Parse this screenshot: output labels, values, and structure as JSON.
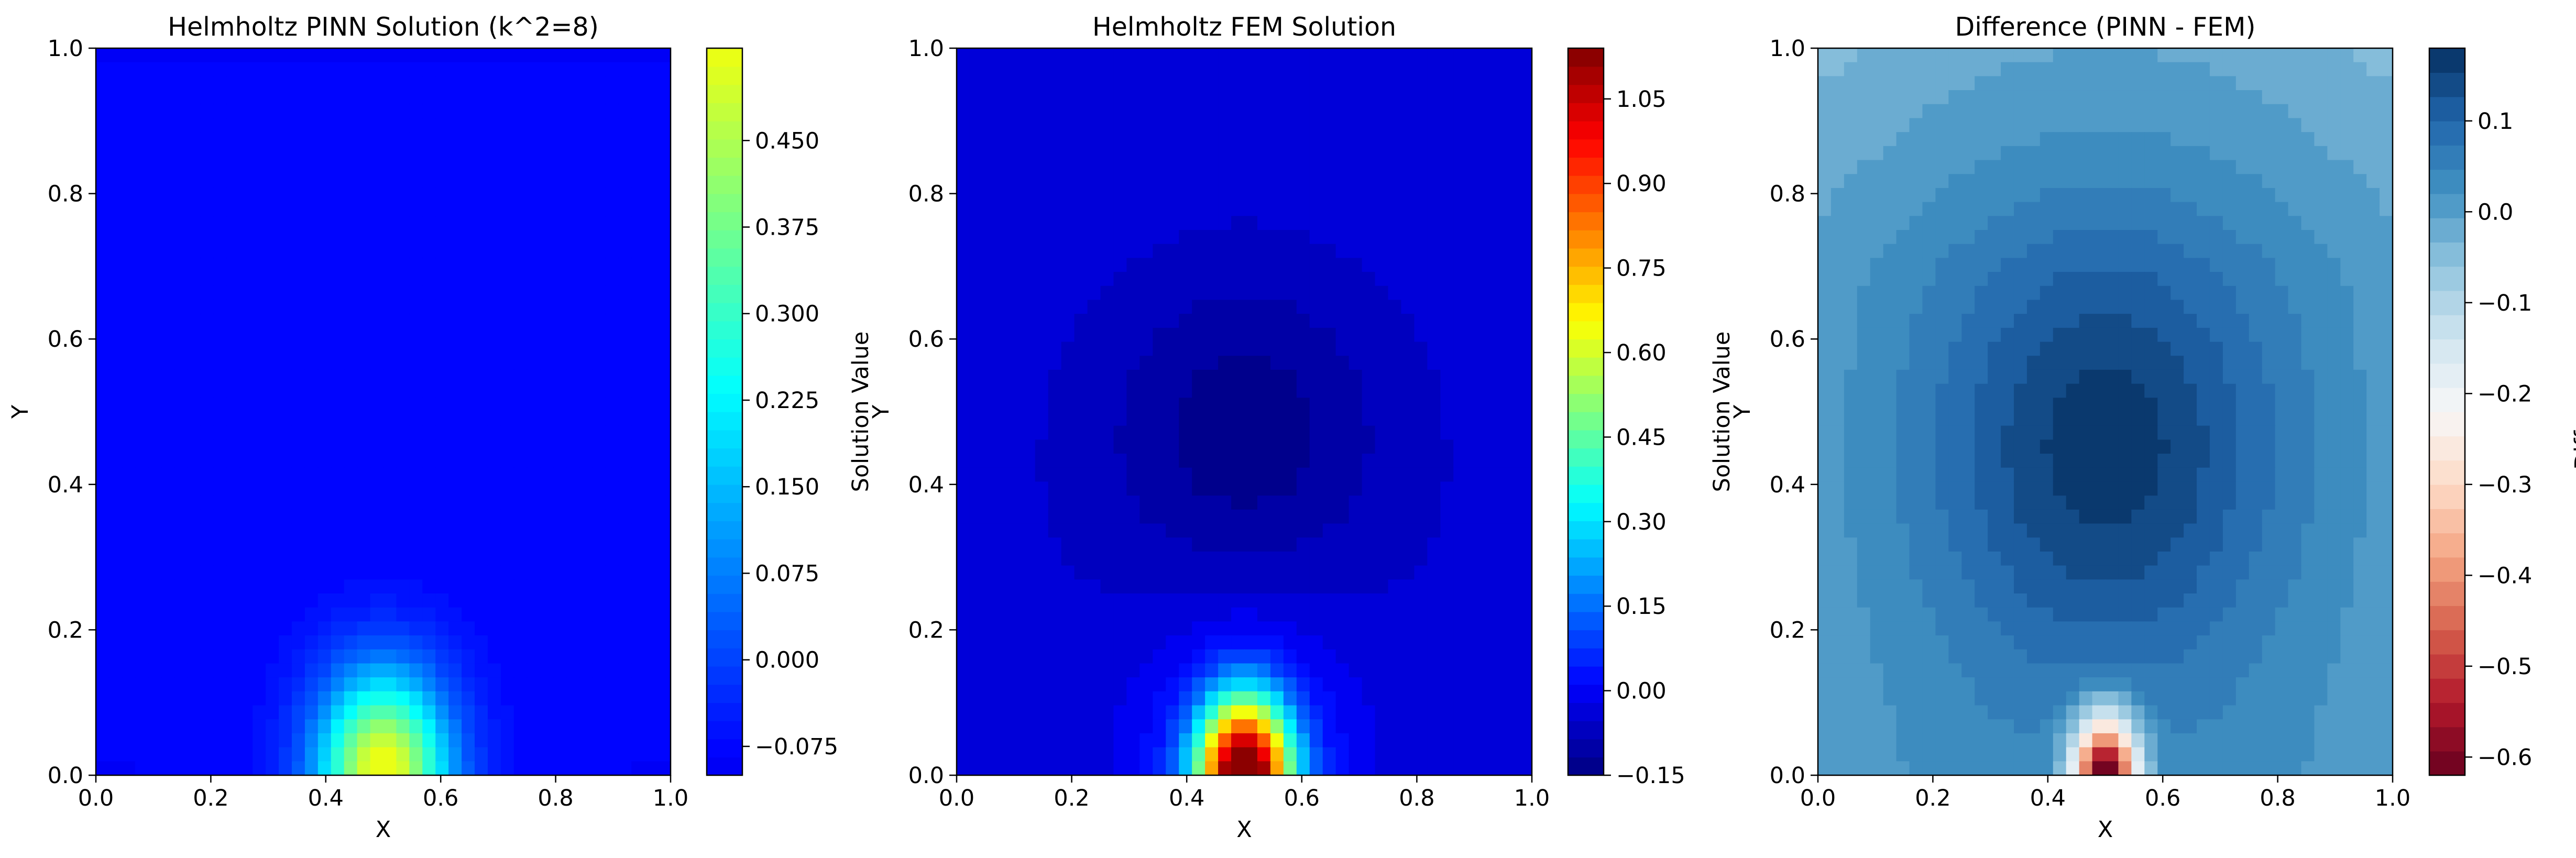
{
  "chart_data": [
    {
      "type": "heatmap",
      "subtype": "filled-contour",
      "title": "Helmholtz PINN Solution (k^2=8)",
      "xlabel": "X",
      "ylabel": "Y",
      "xlim": [
        0.0,
        1.0
      ],
      "ylim": [
        0.0,
        1.0
      ],
      "x_ticks": [
        "0.0",
        "0.2",
        "0.4",
        "0.6",
        "0.8",
        "1.0"
      ],
      "y_ticks": [
        "0.0",
        "0.2",
        "0.4",
        "0.6",
        "0.8",
        "1.0"
      ],
      "colormap": "jet (clipped)",
      "colorbar": {
        "label": "Solution Value",
        "range": [
          -0.1,
          0.53
        ],
        "ticks": [
          -0.075,
          0.0,
          0.075,
          0.15,
          0.225,
          0.3,
          0.375,
          0.45
        ],
        "tick_labels": [
          "−0.075",
          "0.000",
          "0.075",
          "0.150",
          "0.225",
          "0.300",
          "0.375",
          "0.450"
        ]
      },
      "features": [
        {
          "description": "peak source",
          "x": 0.5,
          "y": 0.0,
          "value": 0.53
        },
        {
          "description": "background minimum",
          "value": -0.1
        }
      ]
    },
    {
      "type": "heatmap",
      "subtype": "filled-contour",
      "title": "Helmholtz FEM Solution",
      "xlabel": "X",
      "ylabel": "Y",
      "xlim": [
        0.0,
        1.0
      ],
      "ylim": [
        0.0,
        1.0
      ],
      "x_ticks": [
        "0.0",
        "0.2",
        "0.4",
        "0.6",
        "0.8",
        "1.0"
      ],
      "y_ticks": [
        "0.0",
        "0.2",
        "0.4",
        "0.6",
        "0.8",
        "1.0"
      ],
      "colormap": "jet",
      "colorbar": {
        "label": "Solution Value",
        "range": [
          -0.15,
          1.14
        ],
        "ticks": [
          -0.15,
          0.0,
          0.15,
          0.3,
          0.45,
          0.6,
          0.75,
          0.9,
          1.05
        ],
        "tick_labels": [
          "−0.15",
          "0.00",
          "0.15",
          "0.30",
          "0.45",
          "0.60",
          "0.75",
          "0.90",
          "1.05"
        ]
      },
      "features": [
        {
          "description": "peak source",
          "x": 0.5,
          "y": 0.0,
          "value": 1.14
        },
        {
          "description": "minimum basin",
          "x": 0.5,
          "y": 0.47,
          "value": -0.15
        }
      ]
    },
    {
      "type": "heatmap",
      "subtype": "filled-contour",
      "title": "Difference (PINN - FEM)",
      "xlabel": "X",
      "ylabel": "Y",
      "xlim": [
        0.0,
        1.0
      ],
      "ylim": [
        0.0,
        1.0
      ],
      "x_ticks": [
        "0.0",
        "0.2",
        "0.4",
        "0.6",
        "0.8",
        "1.0"
      ],
      "y_ticks": [
        "0.0",
        "0.2",
        "0.4",
        "0.6",
        "0.8",
        "1.0"
      ],
      "colormap": "RdBu",
      "colorbar": {
        "label": "Difference",
        "range": [
          -0.62,
          0.18
        ],
        "ticks": [
          -0.6,
          -0.5,
          -0.4,
          -0.3,
          -0.2,
          -0.1,
          0.0,
          0.1
        ],
        "tick_labels": [
          "−0.6",
          "−0.5",
          "−0.4",
          "−0.3",
          "−0.2",
          "−0.1",
          "0.0",
          "0.1"
        ]
      },
      "features": [
        {
          "description": "maximum difference basin",
          "x": 0.5,
          "y": 0.45,
          "value": 0.18
        },
        {
          "description": "minimum at source",
          "x": 0.5,
          "y": 0.0,
          "value": -0.62
        }
      ]
    }
  ]
}
